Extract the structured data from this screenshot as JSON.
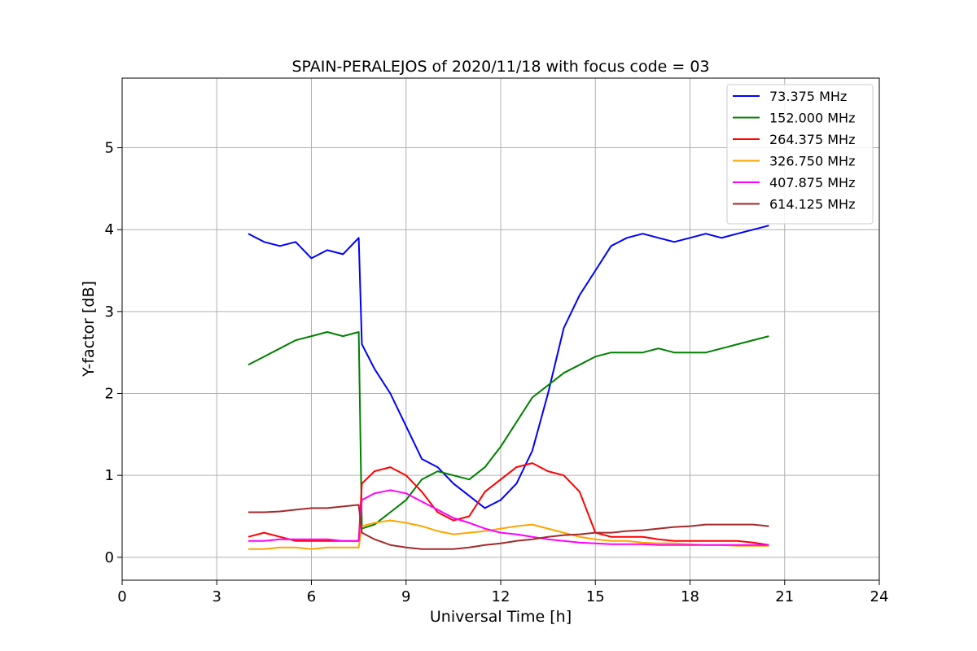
{
  "chart_data": {
    "type": "line",
    "title": "SPAIN-PERALEJOS of 2020/11/18 with focus code = 03",
    "xlabel": "Universal Time [h]",
    "ylabel": "Y-factor [dB]",
    "xlim": [
      0,
      24
    ],
    "ylim": [
      -0.28,
      5.85
    ],
    "xticks": [
      0,
      3,
      6,
      9,
      12,
      15,
      18,
      21,
      24
    ],
    "yticks": [
      0,
      1,
      2,
      3,
      4,
      5
    ],
    "grid": true,
    "legend_position": "top-right",
    "series": [
      {
        "name": " 73.375 MHz",
        "color": "#0000ff",
        "x": [
          4.0,
          4.5,
          5.0,
          5.5,
          6.0,
          6.5,
          7.0,
          7.5,
          7.6,
          8.0,
          8.5,
          9.0,
          9.5,
          10.0,
          10.5,
          11.0,
          11.5,
          12.0,
          12.5,
          13.0,
          13.5,
          14.0,
          14.5,
          15.0,
          15.5,
          16.0,
          16.5,
          17.0,
          17.5,
          18.0,
          18.5,
          19.0,
          19.5,
          20.0,
          20.5
        ],
        "y": [
          3.95,
          3.85,
          3.8,
          3.85,
          3.65,
          3.75,
          3.7,
          3.9,
          2.6,
          2.3,
          2.0,
          1.6,
          1.2,
          1.1,
          0.9,
          0.75,
          0.6,
          0.7,
          0.9,
          1.3,
          2.0,
          2.8,
          3.2,
          3.5,
          3.8,
          3.9,
          3.95,
          3.9,
          3.85,
          3.9,
          3.95,
          3.9,
          3.95,
          4.0,
          4.05
        ]
      },
      {
        "name": "152.000 MHz",
        "color": "#008000",
        "x": [
          4.0,
          4.5,
          5.0,
          5.5,
          6.0,
          6.5,
          7.0,
          7.5,
          7.6,
          8.0,
          8.5,
          9.0,
          9.5,
          10.0,
          10.5,
          11.0,
          11.5,
          12.0,
          12.5,
          13.0,
          13.5,
          14.0,
          14.5,
          15.0,
          15.5,
          16.0,
          16.5,
          17.0,
          17.5,
          18.0,
          18.5,
          19.0,
          19.5,
          20.0,
          20.5
        ],
        "y": [
          2.35,
          2.45,
          2.55,
          2.65,
          2.7,
          2.75,
          2.7,
          2.75,
          0.35,
          0.4,
          0.55,
          0.7,
          0.95,
          1.05,
          1.0,
          0.95,
          1.1,
          1.35,
          1.65,
          1.95,
          2.1,
          2.25,
          2.35,
          2.45,
          2.5,
          2.5,
          2.5,
          2.55,
          2.5,
          2.5,
          2.5,
          2.55,
          2.6,
          2.65,
          2.7
        ]
      },
      {
        "name": "264.375 MHz",
        "color": "#ff0000",
        "x": [
          4.0,
          4.5,
          5.0,
          5.5,
          6.0,
          6.5,
          7.0,
          7.5,
          7.6,
          8.0,
          8.5,
          9.0,
          9.5,
          10.0,
          10.5,
          11.0,
          11.5,
          12.0,
          12.5,
          13.0,
          13.5,
          14.0,
          14.5,
          15.0,
          15.5,
          16.0,
          16.5,
          17.0,
          17.5,
          18.0,
          18.5,
          19.0,
          19.5,
          20.0,
          20.5
        ],
        "y": [
          0.25,
          0.3,
          0.25,
          0.2,
          0.2,
          0.2,
          0.2,
          0.2,
          0.9,
          1.05,
          1.1,
          1.0,
          0.8,
          0.55,
          0.45,
          0.5,
          0.8,
          0.95,
          1.1,
          1.15,
          1.05,
          1.0,
          0.8,
          0.3,
          0.25,
          0.25,
          0.25,
          0.22,
          0.2,
          0.2,
          0.2,
          0.2,
          0.2,
          0.18,
          0.15
        ]
      },
      {
        "name": "326.750 MHz",
        "color": "#ffa500",
        "x": [
          4.0,
          4.5,
          5.0,
          5.5,
          6.0,
          6.5,
          7.0,
          7.5,
          7.6,
          8.0,
          8.5,
          9.0,
          9.5,
          10.0,
          10.5,
          11.0,
          11.5,
          12.0,
          12.5,
          13.0,
          13.5,
          14.0,
          14.5,
          15.0,
          15.5,
          16.0,
          16.5,
          17.0,
          17.5,
          18.0,
          18.5,
          19.0,
          19.5,
          20.0,
          20.5
        ],
        "y": [
          0.1,
          0.1,
          0.12,
          0.12,
          0.1,
          0.12,
          0.12,
          0.12,
          0.38,
          0.42,
          0.45,
          0.42,
          0.38,
          0.32,
          0.28,
          0.3,
          0.32,
          0.35,
          0.38,
          0.4,
          0.35,
          0.3,
          0.25,
          0.22,
          0.2,
          0.2,
          0.18,
          0.17,
          0.17,
          0.16,
          0.15,
          0.15,
          0.14,
          0.14,
          0.14
        ]
      },
      {
        "name": "407.875 MHz",
        "color": "#ff00ff",
        "x": [
          4.0,
          4.5,
          5.0,
          5.5,
          6.0,
          6.5,
          7.0,
          7.5,
          7.6,
          8.0,
          8.5,
          9.0,
          9.5,
          10.0,
          10.5,
          11.0,
          11.5,
          12.0,
          12.5,
          13.0,
          13.5,
          14.0,
          14.5,
          15.0,
          15.5,
          16.0,
          16.5,
          17.0,
          17.5,
          18.0,
          18.5,
          19.0,
          19.5,
          20.0,
          20.5
        ],
        "y": [
          0.2,
          0.2,
          0.22,
          0.22,
          0.22,
          0.22,
          0.2,
          0.2,
          0.7,
          0.78,
          0.82,
          0.78,
          0.68,
          0.58,
          0.48,
          0.42,
          0.35,
          0.3,
          0.28,
          0.25,
          0.22,
          0.2,
          0.18,
          0.17,
          0.16,
          0.16,
          0.16,
          0.15,
          0.15,
          0.15,
          0.15,
          0.15,
          0.15,
          0.15,
          0.15
        ]
      },
      {
        "name": "614.125 MHz",
        "color": "#a52a2a",
        "x": [
          4.0,
          4.5,
          5.0,
          5.5,
          6.0,
          6.5,
          7.0,
          7.5,
          7.6,
          8.0,
          8.5,
          9.0,
          9.5,
          10.0,
          10.5,
          11.0,
          11.5,
          12.0,
          12.5,
          13.0,
          13.5,
          14.0,
          14.5,
          15.0,
          15.5,
          16.0,
          16.5,
          17.0,
          17.5,
          18.0,
          18.5,
          19.0,
          19.5,
          20.0,
          20.5
        ],
        "y": [
          0.55,
          0.55,
          0.56,
          0.58,
          0.6,
          0.6,
          0.62,
          0.64,
          0.3,
          0.22,
          0.15,
          0.12,
          0.1,
          0.1,
          0.1,
          0.12,
          0.15,
          0.17,
          0.2,
          0.22,
          0.25,
          0.27,
          0.28,
          0.3,
          0.3,
          0.32,
          0.33,
          0.35,
          0.37,
          0.38,
          0.4,
          0.4,
          0.4,
          0.4,
          0.38
        ]
      }
    ]
  }
}
